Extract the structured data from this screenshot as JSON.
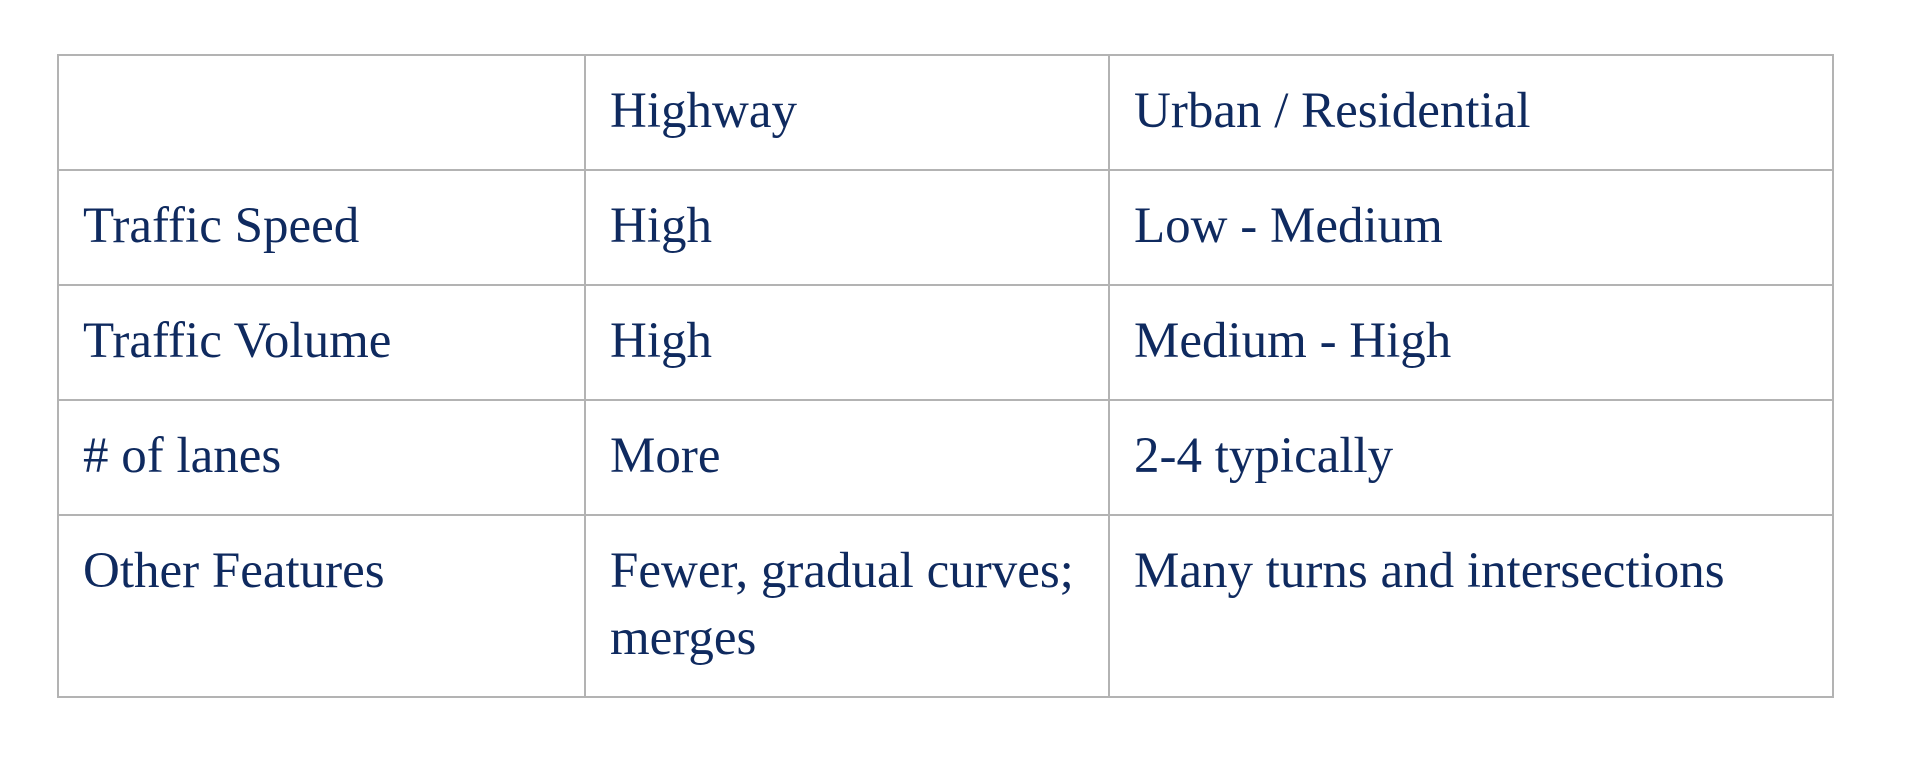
{
  "table": {
    "header": [
      "",
      "Highway",
      "Urban / Residential"
    ],
    "rows": [
      [
        "Traffic Speed",
        "High",
        "Low - Medium"
      ],
      [
        "Traffic Volume",
        "High",
        "Medium - High"
      ],
      [
        "# of lanes",
        "More",
        "2-4 typically"
      ],
      [
        "Other Features",
        "Fewer, gradual curves; merges",
        "Many turns and intersections"
      ]
    ]
  },
  "colors": {
    "text": "#0f2a5f",
    "border": "#b3b3b3",
    "background": "#ffffff"
  }
}
